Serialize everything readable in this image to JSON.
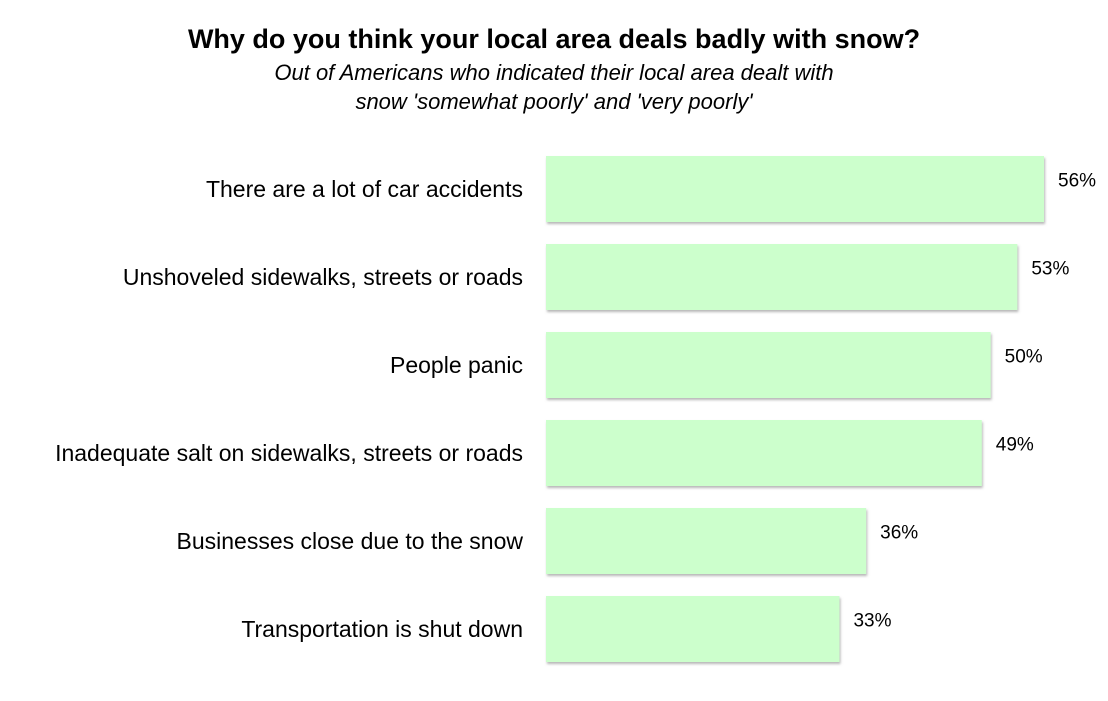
{
  "chart_data": {
    "type": "bar",
    "orientation": "horizontal",
    "title": "Why do you think your local area deals badly with snow?",
    "subtitle": "Out of Americans who indicated their local area dealt with snow 'somewhat poorly' and 'very poorly'",
    "categories": [
      "There are a lot of car accidents",
      "Unshoveled sidewalks, streets or roads",
      "People panic",
      "Inadequate salt on sidewalks, streets or roads",
      "Businesses close due to the snow",
      "Transportation is shut down"
    ],
    "values": [
      56,
      53,
      50,
      49,
      36,
      33
    ],
    "value_labels": [
      "56%",
      "53%",
      "50%",
      "49%",
      "36%",
      "33%"
    ],
    "value_format": "percent",
    "xlim": [
      0,
      56
    ],
    "grid": false,
    "legend": "none",
    "colors": {
      "bar_fill": "#ccffcc",
      "bar_shadow": "#9a9a9a"
    }
  }
}
